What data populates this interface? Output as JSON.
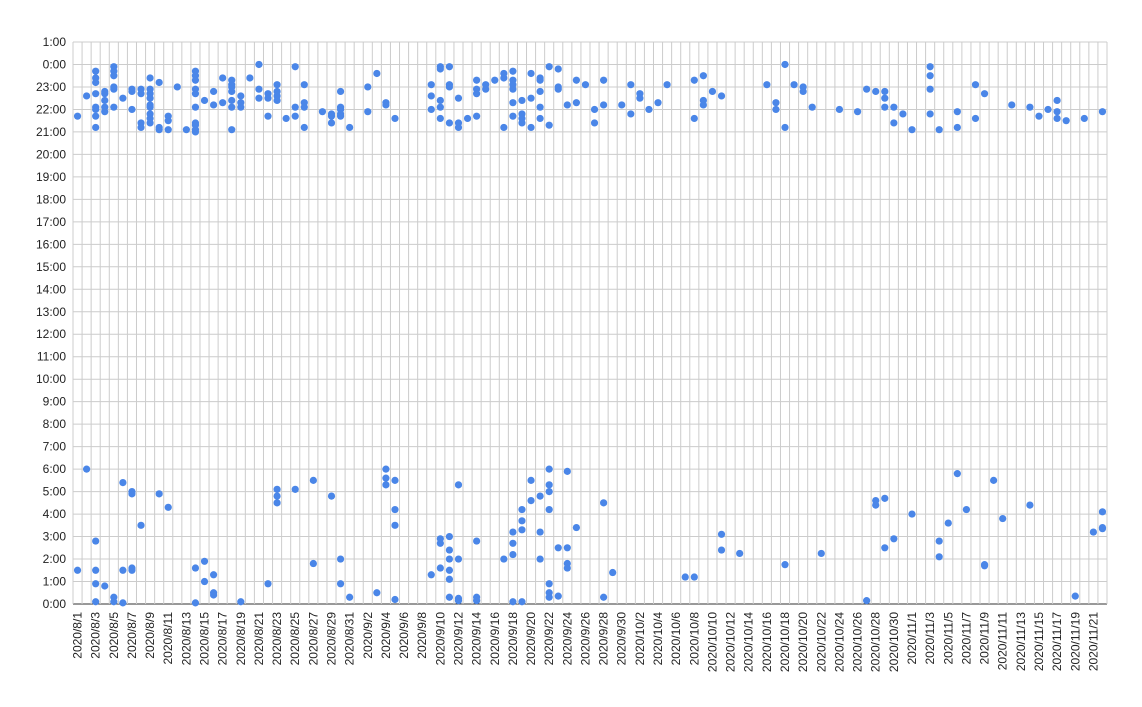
{
  "chart_data": {
    "type": "scatter",
    "title": "",
    "xlabel": "",
    "ylabel": "",
    "x_start": "2020/8/1",
    "x_end": "2020/11/22",
    "y_unit": "hours (0:00 = midnight, times after midnight drawn at bottom)",
    "y_tick_labels": [
      "0:00",
      "1:00",
      "2:00",
      "3:00",
      "4:00",
      "5:00",
      "6:00",
      "7:00",
      "8:00",
      "9:00",
      "10:00",
      "11:00",
      "12:00",
      "13:00",
      "14:00",
      "15:00",
      "16:00",
      "17:00",
      "18:00",
      "19:00",
      "20:00",
      "21:00",
      "22:00",
      "23:00",
      "0:00",
      "1:00"
    ],
    "x_tick_labels": [
      "2020/8/1",
      "2020/8/3",
      "2020/8/5",
      "2020/8/7",
      "2020/8/9",
      "2020/8/11",
      "2020/8/13",
      "2020/8/15",
      "2020/8/17",
      "2020/8/19",
      "2020/8/21",
      "2020/8/23",
      "2020/8/25",
      "2020/8/27",
      "2020/8/29",
      "2020/8/31",
      "2020/9/2",
      "2020/9/4",
      "2020/9/6",
      "2020/9/8",
      "2020/9/10",
      "2020/9/12",
      "2020/9/14",
      "2020/9/16",
      "2020/9/18",
      "2020/9/20",
      "2020/9/22",
      "2020/9/24",
      "2020/9/26",
      "2020/9/28",
      "2020/9/30",
      "2020/10/2",
      "2020/10/4",
      "2020/10/6",
      "2020/10/8",
      "2020/10/10",
      "2020/10/12",
      "2020/10/14",
      "2020/10/16",
      "2020/10/18",
      "2020/10/20",
      "2020/10/22",
      "2020/10/24",
      "2020/10/26",
      "2020/10/28",
      "2020/10/30",
      "2020/11/1",
      "2020/11/3",
      "2020/11/5",
      "2020/11/7",
      "2020/11/9",
      "2020/11/11",
      "2020/11/13",
      "2020/11/15",
      "2020/11/17",
      "2020/11/19",
      "2020/11/21"
    ],
    "ylim": [
      0,
      25
    ],
    "grid": true,
    "legend": "none",
    "marker_color": "#4a86e8",
    "points": [
      [
        "2020/8/1",
        21.7
      ],
      [
        "2020/8/1",
        1.5
      ],
      [
        "2020/8/2",
        22.6
      ],
      [
        "2020/8/2",
        6.0
      ],
      [
        "2020/8/3",
        23.7
      ],
      [
        "2020/8/3",
        23.4
      ],
      [
        "2020/8/3",
        23.2
      ],
      [
        "2020/8/3",
        22.7
      ],
      [
        "2020/8/3",
        22.1
      ],
      [
        "2020/8/3",
        22.0
      ],
      [
        "2020/8/3",
        21.7
      ],
      [
        "2020/8/3",
        21.2
      ],
      [
        "2020/8/3",
        2.8
      ],
      [
        "2020/8/3",
        1.5
      ],
      [
        "2020/8/3",
        0.9
      ],
      [
        "2020/8/3",
        0.1
      ],
      [
        "2020/8/4",
        22.8
      ],
      [
        "2020/8/4",
        22.7
      ],
      [
        "2020/8/4",
        22.4
      ],
      [
        "2020/8/4",
        22.1
      ],
      [
        "2020/8/4",
        21.9
      ],
      [
        "2020/8/4",
        0.8
      ],
      [
        "2020/8/5",
        23.9
      ],
      [
        "2020/8/5",
        23.7
      ],
      [
        "2020/8/5",
        23.5
      ],
      [
        "2020/8/5",
        23.0
      ],
      [
        "2020/8/5",
        22.9
      ],
      [
        "2020/8/5",
        22.1
      ],
      [
        "2020/8/5",
        0.3
      ],
      [
        "2020/8/5",
        0.1
      ],
      [
        "2020/8/6",
        22.5
      ],
      [
        "2020/8/6",
        5.4
      ],
      [
        "2020/8/6",
        1.5
      ],
      [
        "2020/8/6",
        0.05
      ],
      [
        "2020/8/7",
        22.9
      ],
      [
        "2020/8/7",
        22.8
      ],
      [
        "2020/8/7",
        22.0
      ],
      [
        "2020/8/7",
        5.0
      ],
      [
        "2020/8/7",
        4.9
      ],
      [
        "2020/8/7",
        1.6
      ],
      [
        "2020/8/7",
        1.5
      ],
      [
        "2020/8/8",
        22.9
      ],
      [
        "2020/8/8",
        22.7
      ],
      [
        "2020/8/8",
        21.4
      ],
      [
        "2020/8/8",
        21.2
      ],
      [
        "2020/8/8",
        3.5
      ],
      [
        "2020/8/9",
        23.4
      ],
      [
        "2020/8/9",
        22.9
      ],
      [
        "2020/8/9",
        22.7
      ],
      [
        "2020/8/9",
        22.5
      ],
      [
        "2020/8/9",
        22.2
      ],
      [
        "2020/8/9",
        22.1
      ],
      [
        "2020/8/9",
        21.8
      ],
      [
        "2020/8/9",
        21.6
      ],
      [
        "2020/8/9",
        21.4
      ],
      [
        "2020/8/10",
        23.2
      ],
      [
        "2020/8/10",
        21.2
      ],
      [
        "2020/8/10",
        21.1
      ],
      [
        "2020/8/10",
        4.9
      ],
      [
        "2020/8/11",
        21.7
      ],
      [
        "2020/8/11",
        21.5
      ],
      [
        "2020/8/11",
        21.1
      ],
      [
        "2020/8/11",
        4.3
      ],
      [
        "2020/8/12",
        23.0
      ],
      [
        "2020/8/13",
        21.1
      ],
      [
        "2020/8/14",
        23.7
      ],
      [
        "2020/8/14",
        23.5
      ],
      [
        "2020/8/14",
        23.3
      ],
      [
        "2020/8/14",
        22.9
      ],
      [
        "2020/8/14",
        22.7
      ],
      [
        "2020/8/14",
        22.1
      ],
      [
        "2020/8/14",
        21.4
      ],
      [
        "2020/8/14",
        21.3
      ],
      [
        "2020/8/14",
        21.1
      ],
      [
        "2020/8/14",
        21.0
      ],
      [
        "2020/8/14",
        1.6
      ],
      [
        "2020/8/14",
        0.05
      ],
      [
        "2020/8/15",
        22.4
      ],
      [
        "2020/8/15",
        1.9
      ],
      [
        "2020/8/15",
        1.0
      ],
      [
        "2020/8/16",
        22.8
      ],
      [
        "2020/8/16",
        22.2
      ],
      [
        "2020/8/16",
        1.3
      ],
      [
        "2020/8/16",
        0.5
      ],
      [
        "2020/8/16",
        0.4
      ],
      [
        "2020/8/17",
        23.4
      ],
      [
        "2020/8/17",
        22.3
      ],
      [
        "2020/8/18",
        23.3
      ],
      [
        "2020/8/18",
        23.1
      ],
      [
        "2020/8/18",
        23.0
      ],
      [
        "2020/8/18",
        22.8
      ],
      [
        "2020/8/18",
        22.4
      ],
      [
        "2020/8/18",
        22.1
      ],
      [
        "2020/8/18",
        21.1
      ],
      [
        "2020/8/19",
        22.6
      ],
      [
        "2020/8/19",
        22.3
      ],
      [
        "2020/8/19",
        22.1
      ],
      [
        "2020/8/19",
        0.1
      ],
      [
        "2020/8/20",
        23.4
      ],
      [
        "2020/8/21",
        24.0
      ],
      [
        "2020/8/21",
        22.9
      ],
      [
        "2020/8/21",
        22.5
      ],
      [
        "2020/8/22",
        22.7
      ],
      [
        "2020/8/22",
        22.5
      ],
      [
        "2020/8/22",
        21.7
      ],
      [
        "2020/8/22",
        0.9
      ],
      [
        "2020/8/23",
        23.1
      ],
      [
        "2020/8/23",
        22.8
      ],
      [
        "2020/8/23",
        22.6
      ],
      [
        "2020/8/23",
        22.4
      ],
      [
        "2020/8/23",
        5.1
      ],
      [
        "2020/8/23",
        4.8
      ],
      [
        "2020/8/23",
        4.5
      ],
      [
        "2020/8/24",
        21.6
      ],
      [
        "2020/8/25",
        23.9
      ],
      [
        "2020/8/25",
        22.1
      ],
      [
        "2020/8/25",
        21.7
      ],
      [
        "2020/8/25",
        5.1
      ],
      [
        "2020/8/26",
        23.1
      ],
      [
        "2020/8/26",
        22.3
      ],
      [
        "2020/8/26",
        22.1
      ],
      [
        "2020/8/26",
        21.2
      ],
      [
        "2020/8/27",
        5.5
      ],
      [
        "2020/8/27",
        1.8
      ],
      [
        "2020/8/28",
        21.9
      ],
      [
        "2020/8/29",
        21.8
      ],
      [
        "2020/8/29",
        21.7
      ],
      [
        "2020/8/29",
        21.4
      ],
      [
        "2020/8/29",
        4.8
      ],
      [
        "2020/8/30",
        22.8
      ],
      [
        "2020/8/30",
        22.1
      ],
      [
        "2020/8/30",
        22.0
      ],
      [
        "2020/8/30",
        21.8
      ],
      [
        "2020/8/30",
        21.7
      ],
      [
        "2020/8/30",
        2.0
      ],
      [
        "2020/8/30",
        0.9
      ],
      [
        "2020/8/31",
        21.2
      ],
      [
        "2020/8/31",
        0.3
      ],
      [
        "2020/9/2",
        23.0
      ],
      [
        "2020/9/2",
        21.9
      ],
      [
        "2020/9/3",
        23.6
      ],
      [
        "2020/9/3",
        0.5
      ],
      [
        "2020/9/4",
        22.3
      ],
      [
        "2020/9/4",
        22.2
      ],
      [
        "2020/9/4",
        6.0
      ],
      [
        "2020/9/4",
        5.6
      ],
      [
        "2020/9/4",
        5.3
      ],
      [
        "2020/9/5",
        21.6
      ],
      [
        "2020/9/5",
        5.5
      ],
      [
        "2020/9/5",
        4.2
      ],
      [
        "2020/9/5",
        3.5
      ],
      [
        "2020/9/5",
        0.2
      ],
      [
        "2020/9/9",
        23.1
      ],
      [
        "2020/9/9",
        22.6
      ],
      [
        "2020/9/9",
        22.0
      ],
      [
        "2020/9/9",
        1.3
      ],
      [
        "2020/9/10",
        23.9
      ],
      [
        "2020/9/10",
        23.8
      ],
      [
        "2020/9/10",
        22.4
      ],
      [
        "2020/9/10",
        22.1
      ],
      [
        "2020/9/10",
        21.6
      ],
      [
        "2020/9/10",
        2.9
      ],
      [
        "2020/9/10",
        2.7
      ],
      [
        "2020/9/10",
        1.6
      ],
      [
        "2020/9/11",
        23.9
      ],
      [
        "2020/9/11",
        23.1
      ],
      [
        "2020/9/11",
        23.0
      ],
      [
        "2020/9/11",
        21.4
      ],
      [
        "2020/9/11",
        3.0
      ],
      [
        "2020/9/11",
        2.4
      ],
      [
        "2020/9/11",
        2.0
      ],
      [
        "2020/9/11",
        1.5
      ],
      [
        "2020/9/11",
        1.1
      ],
      [
        "2020/9/11",
        0.3
      ],
      [
        "2020/9/12",
        22.5
      ],
      [
        "2020/9/12",
        21.4
      ],
      [
        "2020/9/12",
        21.2
      ],
      [
        "2020/9/12",
        5.3
      ],
      [
        "2020/9/12",
        2.0
      ],
      [
        "2020/9/12",
        0.25
      ],
      [
        "2020/9/12",
        0.15
      ],
      [
        "2020/9/13",
        21.6
      ],
      [
        "2020/9/14",
        23.3
      ],
      [
        "2020/9/14",
        22.9
      ],
      [
        "2020/9/14",
        22.7
      ],
      [
        "2020/9/14",
        21.7
      ],
      [
        "2020/9/14",
        2.8
      ],
      [
        "2020/9/14",
        0.3
      ],
      [
        "2020/9/14",
        0.15
      ],
      [
        "2020/9/15",
        23.1
      ],
      [
        "2020/9/15",
        22.9
      ],
      [
        "2020/9/16",
        23.3
      ],
      [
        "2020/9/17",
        23.6
      ],
      [
        "2020/9/17",
        23.4
      ],
      [
        "2020/9/17",
        21.2
      ],
      [
        "2020/9/17",
        2.0
      ],
      [
        "2020/9/18",
        23.7
      ],
      [
        "2020/9/18",
        23.3
      ],
      [
        "2020/9/18",
        23.1
      ],
      [
        "2020/9/18",
        22.9
      ],
      [
        "2020/9/18",
        22.3
      ],
      [
        "2020/9/18",
        21.7
      ],
      [
        "2020/9/18",
        3.2
      ],
      [
        "2020/9/18",
        2.7
      ],
      [
        "2020/9/18",
        2.2
      ],
      [
        "2020/9/18",
        0.1
      ],
      [
        "2020/9/19",
        22.4
      ],
      [
        "2020/9/19",
        21.8
      ],
      [
        "2020/9/19",
        21.6
      ],
      [
        "2020/9/19",
        21.4
      ],
      [
        "2020/9/19",
        4.2
      ],
      [
        "2020/9/19",
        3.7
      ],
      [
        "2020/9/19",
        3.3
      ],
      [
        "2020/9/19",
        0.1
      ],
      [
        "2020/9/20",
        23.6
      ],
      [
        "2020/9/20",
        22.5
      ],
      [
        "2020/9/20",
        21.2
      ],
      [
        "2020/9/20",
        5.5
      ],
      [
        "2020/9/20",
        4.6
      ],
      [
        "2020/9/21",
        23.4
      ],
      [
        "2020/9/21",
        23.3
      ],
      [
        "2020/9/21",
        22.8
      ],
      [
        "2020/9/21",
        22.1
      ],
      [
        "2020/9/21",
        21.6
      ],
      [
        "2020/9/21",
        4.8
      ],
      [
        "2020/9/21",
        3.2
      ],
      [
        "2020/9/21",
        2.0
      ],
      [
        "2020/9/22",
        23.9
      ],
      [
        "2020/9/22",
        21.3
      ],
      [
        "2020/9/22",
        6.0
      ],
      [
        "2020/9/22",
        5.3
      ],
      [
        "2020/9/22",
        5.0
      ],
      [
        "2020/9/22",
        4.2
      ],
      [
        "2020/9/22",
        0.9
      ],
      [
        "2020/9/22",
        0.5
      ],
      [
        "2020/9/22",
        0.3
      ],
      [
        "2020/9/23",
        23.8
      ],
      [
        "2020/9/23",
        23.0
      ],
      [
        "2020/9/23",
        22.9
      ],
      [
        "2020/9/23",
        2.5
      ],
      [
        "2020/9/23",
        0.35
      ],
      [
        "2020/9/24",
        22.2
      ],
      [
        "2020/9/24",
        5.9
      ],
      [
        "2020/9/24",
        2.5
      ],
      [
        "2020/9/24",
        1.8
      ],
      [
        "2020/9/24",
        1.6
      ],
      [
        "2020/9/25",
        23.3
      ],
      [
        "2020/9/25",
        22.3
      ],
      [
        "2020/9/25",
        3.4
      ],
      [
        "2020/9/26",
        23.1
      ],
      [
        "2020/9/27",
        22.0
      ],
      [
        "2020/9/27",
        21.4
      ],
      [
        "2020/9/28",
        23.3
      ],
      [
        "2020/9/28",
        22.2
      ],
      [
        "2020/9/28",
        4.5
      ],
      [
        "2020/9/28",
        0.3
      ],
      [
        "2020/9/29",
        1.4
      ],
      [
        "2020/9/30",
        22.2
      ],
      [
        "2020/10/1",
        23.1
      ],
      [
        "2020/10/1",
        21.8
      ],
      [
        "2020/10/2",
        22.7
      ],
      [
        "2020/10/2",
        22.5
      ],
      [
        "2020/10/3",
        22.0
      ],
      [
        "2020/10/4",
        22.3
      ],
      [
        "2020/10/5",
        23.1
      ],
      [
        "2020/10/7",
        1.2
      ],
      [
        "2020/10/8",
        23.3
      ],
      [
        "2020/10/8",
        21.6
      ],
      [
        "2020/10/8",
        1.2
      ],
      [
        "2020/10/9",
        23.5
      ],
      [
        "2020/10/9",
        22.4
      ],
      [
        "2020/10/9",
        22.2
      ],
      [
        "2020/10/10",
        22.8
      ],
      [
        "2020/10/11",
        22.6
      ],
      [
        "2020/10/11",
        3.1
      ],
      [
        "2020/10/11",
        2.4
      ],
      [
        "2020/10/13",
        2.25
      ],
      [
        "2020/10/16",
        23.1
      ],
      [
        "2020/10/17",
        22.3
      ],
      [
        "2020/10/17",
        22.0
      ],
      [
        "2020/10/18",
        24.0
      ],
      [
        "2020/10/18",
        21.2
      ],
      [
        "2020/10/18",
        1.75
      ],
      [
        "2020/10/19",
        23.1
      ],
      [
        "2020/10/20",
        23.0
      ],
      [
        "2020/10/20",
        22.8
      ],
      [
        "2020/10/21",
        22.1
      ],
      [
        "2020/10/22",
        2.25
      ],
      [
        "2020/10/24",
        22.0
      ],
      [
        "2020/10/26",
        21.9
      ],
      [
        "2020/10/27",
        22.9
      ],
      [
        "2020/10/27",
        0.15
      ],
      [
        "2020/10/28",
        22.8
      ],
      [
        "2020/10/28",
        4.6
      ],
      [
        "2020/10/28",
        4.4
      ],
      [
        "2020/10/29",
        22.8
      ],
      [
        "2020/10/29",
        22.5
      ],
      [
        "2020/10/29",
        22.1
      ],
      [
        "2020/10/29",
        4.7
      ],
      [
        "2020/10/29",
        2.5
      ],
      [
        "2020/10/30",
        22.1
      ],
      [
        "2020/10/30",
        21.4
      ],
      [
        "2020/10/30",
        2.9
      ],
      [
        "2020/10/31",
        21.8
      ],
      [
        "2020/11/1",
        21.1
      ],
      [
        "2020/11/1",
        4.0
      ],
      [
        "2020/11/3",
        23.9
      ],
      [
        "2020/11/3",
        23.5
      ],
      [
        "2020/11/3",
        22.9
      ],
      [
        "2020/11/3",
        21.8
      ],
      [
        "2020/11/4",
        21.1
      ],
      [
        "2020/11/4",
        2.8
      ],
      [
        "2020/11/4",
        2.1
      ],
      [
        "2020/11/5",
        3.6
      ],
      [
        "2020/11/6",
        21.9
      ],
      [
        "2020/11/6",
        21.2
      ],
      [
        "2020/11/6",
        5.8
      ],
      [
        "2020/11/7",
        4.2
      ],
      [
        "2020/11/8",
        23.1
      ],
      [
        "2020/11/8",
        21.6
      ],
      [
        "2020/11/9",
        22.7
      ],
      [
        "2020/11/9",
        1.75
      ],
      [
        "2020/11/9",
        1.7
      ],
      [
        "2020/11/10",
        5.5
      ],
      [
        "2020/11/11",
        3.8
      ],
      [
        "2020/11/12",
        22.2
      ],
      [
        "2020/11/14",
        22.1
      ],
      [
        "2020/11/14",
        4.4
      ],
      [
        "2020/11/15",
        21.7
      ],
      [
        "2020/11/16",
        22.0
      ],
      [
        "2020/11/17",
        22.4
      ],
      [
        "2020/11/17",
        21.9
      ],
      [
        "2020/11/17",
        21.6
      ],
      [
        "2020/11/18",
        21.5
      ],
      [
        "2020/11/19",
        0.35
      ],
      [
        "2020/11/20",
        21.6
      ],
      [
        "2020/11/21",
        3.2
      ],
      [
        "2020/11/22",
        21.9
      ],
      [
        "2020/11/22",
        4.1
      ],
      [
        "2020/11/22",
        3.4
      ],
      [
        "2020/11/22",
        3.35
      ]
    ]
  }
}
